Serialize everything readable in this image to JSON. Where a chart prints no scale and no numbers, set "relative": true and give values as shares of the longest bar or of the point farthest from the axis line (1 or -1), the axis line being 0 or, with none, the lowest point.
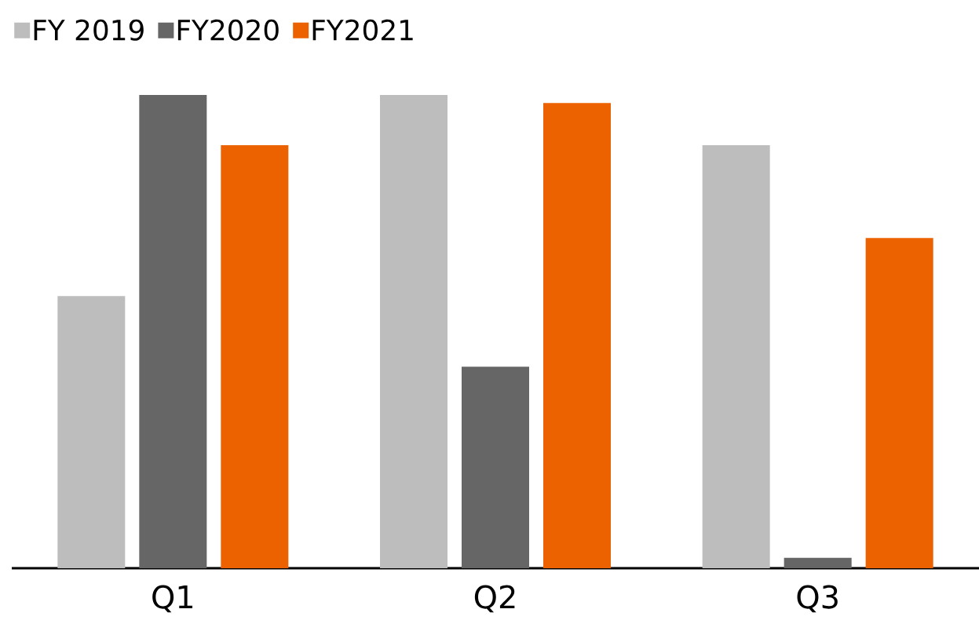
{
  "chart_data": {
    "type": "bar",
    "relative": true,
    "legend": "top left",
    "categories": [
      "Q1",
      "Q2",
      "Q3"
    ],
    "series": [
      {
        "name": "FY 2019",
        "color": "#bdbdbd",
        "values": [
          0.575,
          1,
          0.894
        ]
      },
      {
        "name": "FY2020",
        "color": "#666666",
        "values": [
          1,
          0.426,
          0.022
        ]
      },
      {
        "name": "FY2021",
        "color": "#ec6200",
        "values": [
          0.894,
          0.983,
          0.698
        ]
      }
    ]
  }
}
